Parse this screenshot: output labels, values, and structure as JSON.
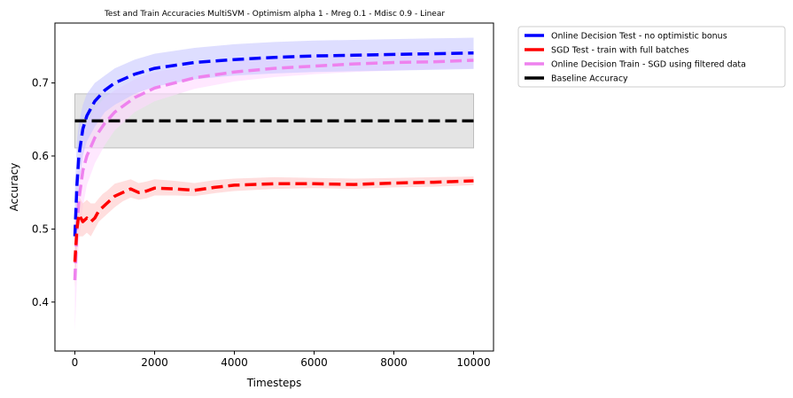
{
  "chart_data": {
    "type": "line",
    "title": "Test and Train Accuracies MultiSVM - Optimism alpha 1 - Mreg 0.1 - Mdisc 0.9 - Linear",
    "xlabel": "Timesteps",
    "ylabel": "Accuracy",
    "xlim": [
      -500,
      10500
    ],
    "ylim": [
      0.333,
      0.782
    ],
    "xticks": [
      0,
      2000,
      4000,
      6000,
      8000,
      10000
    ],
    "xtick_labels": [
      "0",
      "2000",
      "4000",
      "6000",
      "8000",
      "10000"
    ],
    "yticks": [
      0.4,
      0.5,
      0.6,
      0.7
    ],
    "ytick_labels": [
      "0.4",
      "0.5",
      "0.6",
      "0.7"
    ],
    "grid": false,
    "legend_position": "outside-top-right",
    "series": [
      {
        "name": "Online Decision Test - no optimistic bonus",
        "color": "#0000ff",
        "band_color": "#c8c8ff",
        "x": [
          0,
          50,
          100,
          200,
          300,
          500,
          750,
          1000,
          1500,
          2000,
          3000,
          4000,
          5000,
          6000,
          7000,
          8000,
          9000,
          10000
        ],
        "y": [
          0.49,
          0.56,
          0.6,
          0.637,
          0.655,
          0.675,
          0.69,
          0.7,
          0.712,
          0.72,
          0.728,
          0.732,
          0.735,
          0.737,
          0.738,
          0.739,
          0.74,
          0.741
        ],
        "band_lower": [
          0.43,
          0.5,
          0.56,
          0.6,
          0.62,
          0.64,
          0.66,
          0.67,
          0.685,
          0.695,
          0.705,
          0.71,
          0.713,
          0.715,
          0.716,
          0.717,
          0.718,
          0.719
        ],
        "band_upper": [
          0.55,
          0.62,
          0.645,
          0.67,
          0.685,
          0.7,
          0.71,
          0.72,
          0.732,
          0.74,
          0.748,
          0.753,
          0.756,
          0.758,
          0.759,
          0.76,
          0.761,
          0.762
        ]
      },
      {
        "name": "SGD Test - train with full batches",
        "color": "#ff0000",
        "band_color": "#ffc8c8",
        "x": [
          0,
          50,
          100,
          200,
          300,
          400,
          500,
          600,
          700,
          800,
          1000,
          1200,
          1400,
          1600,
          1800,
          2000,
          2500,
          3000,
          3500,
          4000,
          5000,
          6000,
          7000,
          8000,
          9000,
          10000
        ],
        "y": [
          0.455,
          0.5,
          0.52,
          0.51,
          0.515,
          0.51,
          0.515,
          0.525,
          0.53,
          0.535,
          0.545,
          0.55,
          0.555,
          0.55,
          0.552,
          0.556,
          0.555,
          0.553,
          0.557,
          0.56,
          0.562,
          0.562,
          0.561,
          0.563,
          0.564,
          0.566
        ],
        "band_lower": [
          0.42,
          0.47,
          0.49,
          0.49,
          0.495,
          0.49,
          0.5,
          0.51,
          0.515,
          0.52,
          0.53,
          0.538,
          0.543,
          0.54,
          0.542,
          0.546,
          0.546,
          0.545,
          0.549,
          0.552,
          0.555,
          0.556,
          0.555,
          0.557,
          0.558,
          0.56
        ],
        "band_upper": [
          0.49,
          0.53,
          0.545,
          0.535,
          0.54,
          0.535,
          0.535,
          0.542,
          0.548,
          0.552,
          0.562,
          0.565,
          0.568,
          0.563,
          0.565,
          0.568,
          0.566,
          0.563,
          0.567,
          0.569,
          0.571,
          0.57,
          0.569,
          0.57,
          0.571,
          0.572
        ]
      },
      {
        "name": "Online Decision Train - SGD using filtered data",
        "color": "#ee82ee",
        "band_color": "#ffd9ff",
        "x": [
          0,
          50,
          100,
          200,
          300,
          500,
          750,
          1000,
          1500,
          2000,
          3000,
          4000,
          5000,
          6000,
          7000,
          8000,
          9000,
          10000
        ],
        "y": [
          0.43,
          0.5,
          0.54,
          0.58,
          0.6,
          0.625,
          0.645,
          0.66,
          0.68,
          0.693,
          0.707,
          0.715,
          0.72,
          0.723,
          0.726,
          0.728,
          0.729,
          0.731
        ],
        "band_lower": [
          0.36,
          0.43,
          0.48,
          0.53,
          0.56,
          0.59,
          0.615,
          0.635,
          0.66,
          0.675,
          0.692,
          0.702,
          0.708,
          0.712,
          0.715,
          0.717,
          0.719,
          0.72
        ],
        "band_upper": [
          0.5,
          0.57,
          0.6,
          0.63,
          0.645,
          0.665,
          0.68,
          0.69,
          0.705,
          0.715,
          0.725,
          0.732,
          0.736,
          0.738,
          0.74,
          0.742,
          0.743,
          0.744
        ]
      },
      {
        "name": "Baseline Accuracy",
        "color": "#000000",
        "band_color": "#e4e4e4",
        "band_stroke": "#bdbdbd",
        "x": [
          0,
          10000
        ],
        "y": [
          0.648,
          0.648
        ],
        "band_lower": [
          0.611,
          0.611
        ],
        "band_upper": [
          0.685,
          0.685
        ]
      }
    ]
  }
}
